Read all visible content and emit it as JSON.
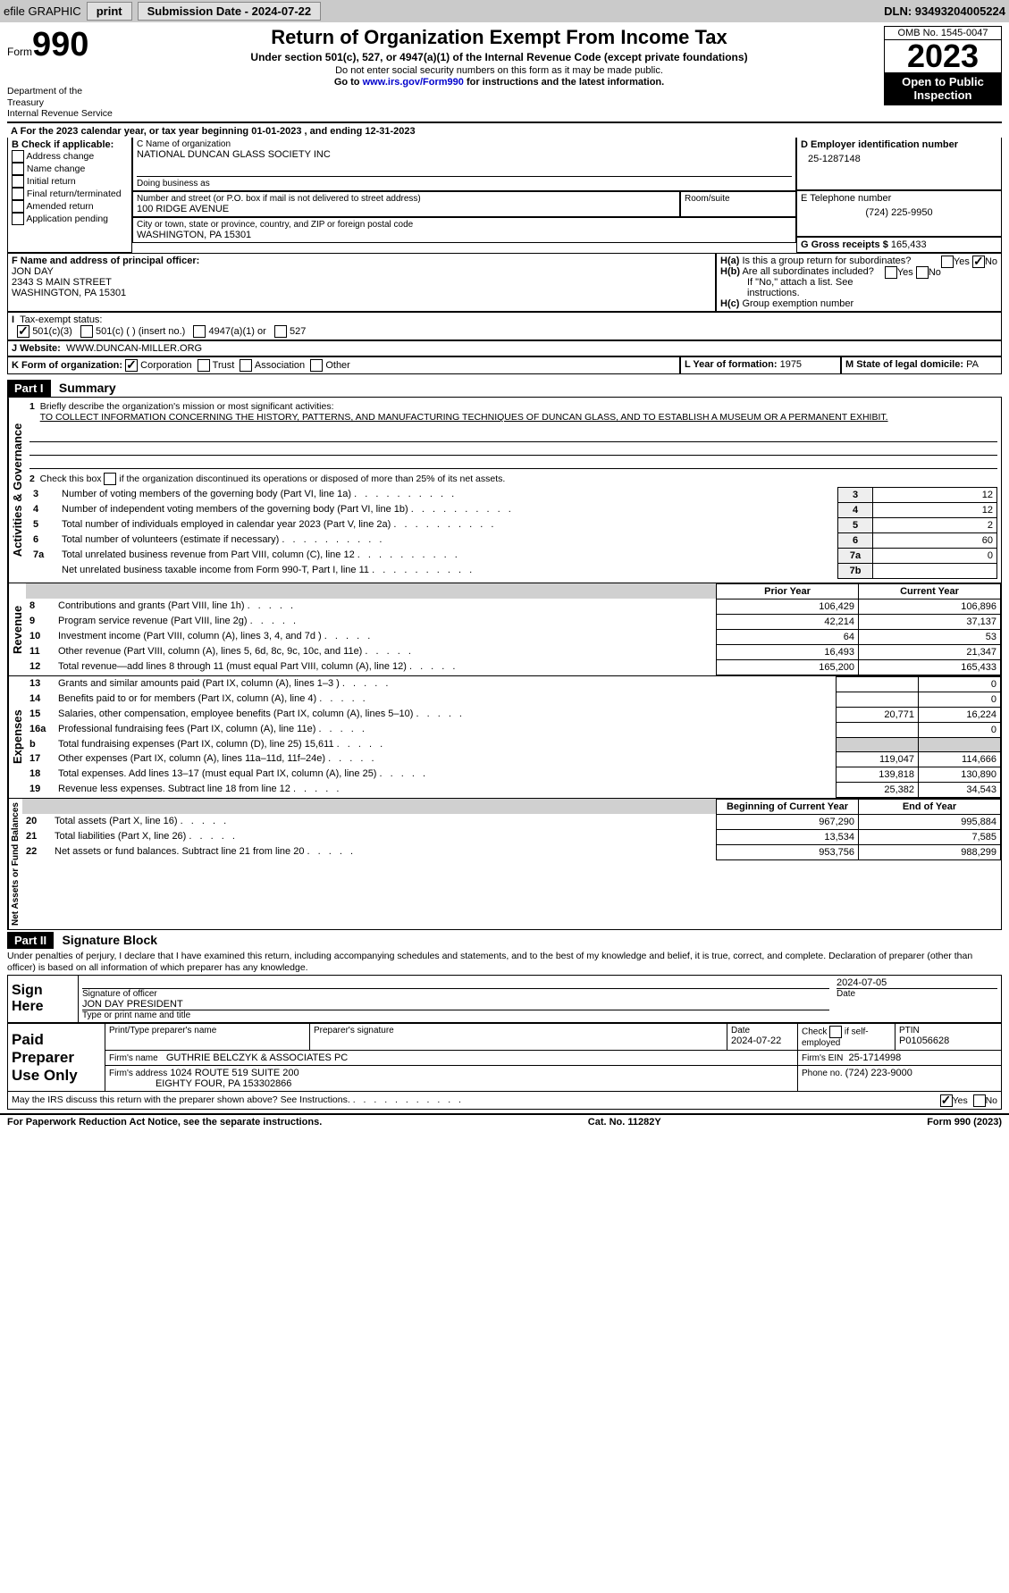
{
  "topbar": {
    "efile": "efile GRAPHIC",
    "print": "print",
    "submission_label": "Submission Date - 2024-07-22",
    "dln": "DLN: 93493204005224"
  },
  "header": {
    "form_word": "Form",
    "form_num": "990",
    "title": "Return of Organization Exempt From Income Tax",
    "subtitle": "Under section 501(c), 527, or 4947(a)(1) of the Internal Revenue Code (except private foundations)",
    "line1": "Do not enter social security numbers on this form as it may be made public.",
    "line2_pre": "Go to ",
    "line2_link": "www.irs.gov/Form990",
    "line2_post": " for instructions and the latest information.",
    "dept": "Department of the Treasury",
    "irs": "Internal Revenue Service",
    "omb": "OMB No. 1545-0047",
    "year": "2023",
    "inspection": "Open to Public Inspection"
  },
  "periodA": "For the 2023 calendar year, or tax year beginning 01-01-2023   , and ending 12-31-2023",
  "boxB": {
    "title": "B Check if applicable:",
    "opts": [
      "Address change",
      "Name change",
      "Initial return",
      "Final return/terminated",
      "Amended return",
      "Application pending"
    ]
  },
  "boxC": {
    "name_label": "C Name of organization",
    "name": "NATIONAL DUNCAN GLASS SOCIETY INC",
    "dba_label": "Doing business as",
    "street_label": "Number and street (or P.O. box if mail is not delivered to street address)",
    "street": "100 RIDGE AVENUE",
    "room_label": "Room/suite",
    "city_label": "City or town, state or province, country, and ZIP or foreign postal code",
    "city": "WASHINGTON, PA  15301"
  },
  "boxD": {
    "label": "D Employer identification number",
    "value": "25-1287148"
  },
  "boxE": {
    "label": "E Telephone number",
    "value": "(724) 225-9950"
  },
  "boxG": {
    "label": "G Gross receipts $",
    "value": "165,433"
  },
  "boxF": {
    "label": "F  Name and address of principal officer:",
    "name": "JON DAY",
    "addr1": "2343 S MAIN STREET",
    "addr2": "WASHINGTON, PA  15301"
  },
  "boxH": {
    "a_label": "H(a)  Is this a group return for subordinates?",
    "b_label": "H(b)  Are all subordinates included?",
    "b_note": "If \"No,\" attach a list. See instructions.",
    "c_label": "H(c)  Group exemption number",
    "yes": "Yes",
    "no": "No"
  },
  "boxI": {
    "label": "I  Tax-exempt status:",
    "c3": "501(c)(3)",
    "c_other": "501(c) (  ) (insert no.)",
    "a4947": "4947(a)(1) or",
    "s527": "527"
  },
  "boxJ": {
    "label": "J  Website:",
    "value": "WWW.DUNCAN-MILLER.ORG"
  },
  "boxK": {
    "label": "K Form of organization:",
    "corp": "Corporation",
    "trust": "Trust",
    "assoc": "Association",
    "other": "Other"
  },
  "boxL": {
    "label": "L Year of formation:",
    "value": "1975"
  },
  "boxM": {
    "label": "M State of legal domicile:",
    "value": "PA"
  },
  "part1": {
    "label": "Part I",
    "title": "Summary",
    "side_ag": "Activities & Governance",
    "side_rev": "Revenue",
    "side_exp": "Expenses",
    "side_na": "Net Assets or Fund Balances",
    "line1": "Briefly describe the organization's mission or most significant activities:",
    "mission": "TO COLLECT INFORMATION CONCERNING THE HISTORY, PATTERNS, AND MANUFACTURING TECHNIQUES OF DUNCAN GLASS, AND TO ESTABLISH A MUSEUM OR A PERMANENT EXHIBIT.",
    "line2": "Check this box        if the organization discontinued its operations or disposed of more than 25% of its net assets.",
    "lines_ag": [
      {
        "n": "3",
        "d": "Number of voting members of the governing body (Part VI, line 1a)",
        "k": "3",
        "v": "12"
      },
      {
        "n": "4",
        "d": "Number of independent voting members of the governing body (Part VI, line 1b)",
        "k": "4",
        "v": "12"
      },
      {
        "n": "5",
        "d": "Total number of individuals employed in calendar year 2023 (Part V, line 2a)",
        "k": "5",
        "v": "2"
      },
      {
        "n": "6",
        "d": "Total number of volunteers (estimate if necessary)",
        "k": "6",
        "v": "60"
      },
      {
        "n": "7a",
        "d": "Total unrelated business revenue from Part VIII, column (C), line 12",
        "k": "7a",
        "v": "0"
      },
      {
        "n": "",
        "d": "Net unrelated business taxable income from Form 990-T, Part I, line 11",
        "k": "7b",
        "v": ""
      }
    ],
    "col_prior": "Prior Year",
    "col_current": "Current Year",
    "lines_rev": [
      {
        "n": "8",
        "d": "Contributions and grants (Part VIII, line 1h)",
        "p": "106,429",
        "c": "106,896"
      },
      {
        "n": "9",
        "d": "Program service revenue (Part VIII, line 2g)",
        "p": "42,214",
        "c": "37,137"
      },
      {
        "n": "10",
        "d": "Investment income (Part VIII, column (A), lines 3, 4, and 7d )",
        "p": "64",
        "c": "53"
      },
      {
        "n": "11",
        "d": "Other revenue (Part VIII, column (A), lines 5, 6d, 8c, 9c, 10c, and 11e)",
        "p": "16,493",
        "c": "21,347"
      },
      {
        "n": "12",
        "d": "Total revenue—add lines 8 through 11 (must equal Part VIII, column (A), line 12)",
        "p": "165,200",
        "c": "165,433"
      }
    ],
    "lines_exp": [
      {
        "n": "13",
        "d": "Grants and similar amounts paid (Part IX, column (A), lines 1–3 )",
        "p": "",
        "c": "0"
      },
      {
        "n": "14",
        "d": "Benefits paid to or for members (Part IX, column (A), line 4)",
        "p": "",
        "c": "0"
      },
      {
        "n": "15",
        "d": "Salaries, other compensation, employee benefits (Part IX, column (A), lines 5–10)",
        "p": "20,771",
        "c": "16,224"
      },
      {
        "n": "16a",
        "d": "Professional fundraising fees (Part IX, column (A), line 11e)",
        "p": "",
        "c": "0"
      },
      {
        "n": "b",
        "d": "Total fundraising expenses (Part IX, column (D), line 25) 15,611",
        "p": "gray",
        "c": "gray"
      },
      {
        "n": "17",
        "d": "Other expenses (Part IX, column (A), lines 11a–11d, 11f–24e)",
        "p": "119,047",
        "c": "114,666"
      },
      {
        "n": "18",
        "d": "Total expenses. Add lines 13–17 (must equal Part IX, column (A), line 25)",
        "p": "139,818",
        "c": "130,890"
      },
      {
        "n": "19",
        "d": "Revenue less expenses. Subtract line 18 from line 12",
        "p": "25,382",
        "c": "34,543"
      }
    ],
    "col_begin": "Beginning of Current Year",
    "col_end": "End of Year",
    "lines_na": [
      {
        "n": "20",
        "d": "Total assets (Part X, line 16)",
        "p": "967,290",
        "c": "995,884"
      },
      {
        "n": "21",
        "d": "Total liabilities (Part X, line 26)",
        "p": "13,534",
        "c": "7,585"
      },
      {
        "n": "22",
        "d": "Net assets or fund balances. Subtract line 21 from line 20",
        "p": "953,756",
        "c": "988,299"
      }
    ]
  },
  "part2": {
    "label": "Part II",
    "title": "Signature Block",
    "perjury": "Under penalties of perjury, I declare that I have examined this return, including accompanying schedules and statements, and to the best of my knowledge and belief, it is true, correct, and complete. Declaration of preparer (other than officer) is based on all information of which preparer has any knowledge.",
    "sign_here": "Sign Here",
    "sig_officer": "Signature of officer",
    "sig_name": "JON DAY PRESIDENT",
    "sig_type": "Type or print name and title",
    "sig_date": "2024-07-05",
    "date_label": "Date",
    "paid": "Paid Preparer Use Only",
    "prep_name_label": "Print/Type preparer's name",
    "prep_sig_label": "Preparer's signature",
    "prep_date": "2024-07-22",
    "check_self": "Check         if self-employed",
    "ptin_label": "PTIN",
    "ptin": "P01056628",
    "firm_name_label": "Firm's name",
    "firm_name": "GUTHRIE BELCZYK & ASSOCIATES PC",
    "firm_ein_label": "Firm's EIN",
    "firm_ein": "25-1714998",
    "firm_addr_label": "Firm's address",
    "firm_addr1": "1024 ROUTE 519 SUITE 200",
    "firm_addr2": "EIGHTY FOUR, PA  153302866",
    "firm_phone_label": "Phone no.",
    "firm_phone": "(724) 223-9000",
    "discuss": "May the IRS discuss this return with the preparer shown above? See Instructions."
  },
  "footer": {
    "left": "For Paperwork Reduction Act Notice, see the separate instructions.",
    "mid": "Cat. No. 11282Y",
    "right": "Form 990 (2023)"
  }
}
